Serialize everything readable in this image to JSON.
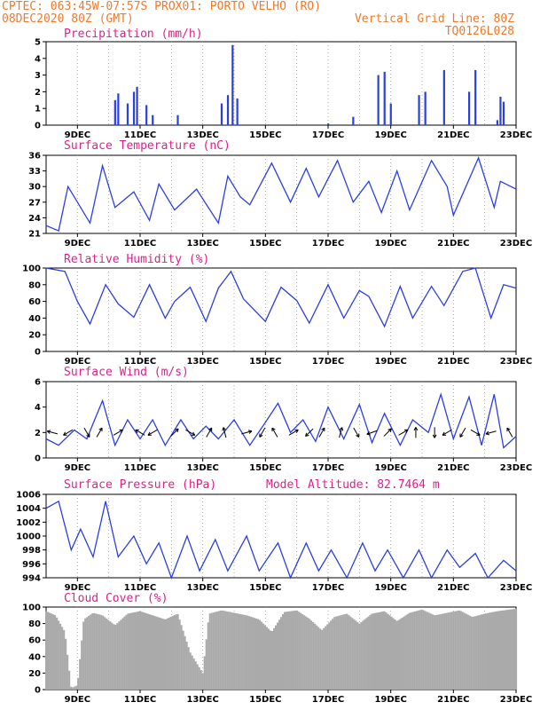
{
  "header": {
    "line1_left": "CPTEC:   063:45W-07:57S   PROX01: PORTO VELHO (RO)",
    "line2_left": "08DEC2020 80Z (GMT)",
    "line2_right": "Vertical Grid Line: 80Z",
    "line3_right": "TQ0126L028"
  },
  "colors": {
    "header": "#f07a2b",
    "title": "#e0208c",
    "series": "#2a3fe0",
    "cloud": "#aaaaaa",
    "grid": "#9a9a9a"
  },
  "x_labels": [
    "9DEC",
    "11DEC",
    "13DEC",
    "15DEC",
    "17DEC",
    "19DEC",
    "21DEC",
    "23DEC"
  ],
  "chart_data": [
    {
      "type": "bar",
      "title": "Precipitation (mm/h)",
      "x_range": [
        "08DEC2020 08Z",
        "23DEC2020 08Z"
      ],
      "ylim": [
        0,
        5
      ],
      "yticks": [
        0,
        1,
        2,
        3,
        4,
        5
      ],
      "series": [
        {
          "values": [
            [
              2.2,
              1.5
            ],
            [
              2.3,
              1.9
            ],
            [
              2.6,
              1.3
            ],
            [
              2.8,
              2.0
            ],
            [
              2.9,
              2.3
            ],
            [
              3.2,
              1.2
            ],
            [
              3.4,
              0.6
            ],
            [
              4.2,
              0.6
            ],
            [
              5.6,
              1.3
            ],
            [
              5.8,
              1.8
            ],
            [
              5.95,
              4.8
            ],
            [
              6.1,
              1.6
            ],
            [
              9.0,
              0.1
            ],
            [
              9.8,
              0.5
            ],
            [
              10.6,
              3.0
            ],
            [
              10.8,
              3.2
            ],
            [
              11.0,
              1.3
            ],
            [
              11.9,
              1.8
            ],
            [
              12.1,
              2.0
            ],
            [
              12.7,
              3.3
            ],
            [
              13.5,
              2.0
            ],
            [
              13.7,
              3.3
            ],
            [
              14.4,
              0.3
            ],
            [
              14.5,
              1.7
            ],
            [
              14.6,
              1.4
            ]
          ]
        }
      ]
    },
    {
      "type": "line",
      "title": "Surface Temperature (nC)",
      "ylim": [
        21,
        36
      ],
      "yticks": [
        21,
        24,
        27,
        30,
        33,
        36
      ],
      "series": [
        {
          "values": [
            [
              0,
              22.5
            ],
            [
              0.4,
              21.5
            ],
            [
              0.7,
              30
            ],
            [
              0.9,
              28
            ],
            [
              1.4,
              23
            ],
            [
              1.8,
              34
            ],
            [
              2.2,
              26
            ],
            [
              2.8,
              29
            ],
            [
              3.3,
              23.5
            ],
            [
              3.6,
              30.5
            ],
            [
              4.1,
              25.5
            ],
            [
              4.8,
              29.5
            ],
            [
              5.5,
              23
            ],
            [
              5.8,
              32
            ],
            [
              6.2,
              28
            ],
            [
              6.5,
              26.5
            ],
            [
              7.2,
              34.5
            ],
            [
              7.8,
              27
            ],
            [
              8.3,
              33.5
            ],
            [
              8.7,
              28
            ],
            [
              9.3,
              35
            ],
            [
              9.8,
              27
            ],
            [
              10.3,
              31
            ],
            [
              10.7,
              25
            ],
            [
              11.2,
              33
            ],
            [
              11.6,
              25.5
            ],
            [
              12.3,
              35
            ],
            [
              12.8,
              30
            ],
            [
              13.0,
              24.5
            ],
            [
              13.8,
              35.5
            ],
            [
              14.3,
              26
            ],
            [
              14.5,
              31
            ],
            [
              15.0,
              29.5
            ]
          ]
        }
      ]
    },
    {
      "type": "line",
      "title": "Relative Humidity (%)",
      "ylim": [
        0,
        100
      ],
      "yticks": [
        0,
        20,
        40,
        60,
        80,
        100
      ],
      "series": [
        {
          "values": [
            [
              0,
              100
            ],
            [
              0.6,
              96
            ],
            [
              1.0,
              60
            ],
            [
              1.4,
              33
            ],
            [
              1.9,
              80
            ],
            [
              2.3,
              57
            ],
            [
              2.8,
              41
            ],
            [
              3.3,
              80
            ],
            [
              3.8,
              40
            ],
            [
              4.1,
              60
            ],
            [
              4.6,
              77
            ],
            [
              5.1,
              36
            ],
            [
              5.5,
              76
            ],
            [
              5.9,
              96
            ],
            [
              6.3,
              63
            ],
            [
              7.0,
              36
            ],
            [
              7.5,
              77
            ],
            [
              8.0,
              61
            ],
            [
              8.4,
              34
            ],
            [
              9.0,
              80
            ],
            [
              9.5,
              40
            ],
            [
              10.0,
              73
            ],
            [
              10.3,
              66
            ],
            [
              10.8,
              30
            ],
            [
              11.3,
              78
            ],
            [
              11.7,
              40
            ],
            [
              12.3,
              78
            ],
            [
              12.7,
              55
            ],
            [
              13.3,
              96
            ],
            [
              13.7,
              100
            ],
            [
              14.2,
              40
            ],
            [
              14.6,
              80
            ],
            [
              15.0,
              76
            ]
          ]
        }
      ]
    },
    {
      "type": "line",
      "title": "Surface Wind (m/s)",
      "ylim": [
        0,
        6
      ],
      "yticks": [
        0,
        2,
        4,
        6
      ],
      "series": [
        {
          "values": [
            [
              0,
              1.5
            ],
            [
              0.4,
              1.0
            ],
            [
              0.9,
              2.2
            ],
            [
              1.3,
              1.5
            ],
            [
              1.8,
              4.5
            ],
            [
              2.2,
              1.0
            ],
            [
              2.6,
              3.0
            ],
            [
              3.0,
              1.5
            ],
            [
              3.4,
              3.0
            ],
            [
              3.8,
              1.0
            ],
            [
              4.3,
              3.0
            ],
            [
              4.7,
              1.5
            ],
            [
              5.1,
              2.5
            ],
            [
              5.5,
              1.5
            ],
            [
              6.0,
              3.0
            ],
            [
              6.5,
              1.0
            ],
            [
              7.0,
              2.8
            ],
            [
              7.4,
              4.3
            ],
            [
              7.8,
              2.0
            ],
            [
              8.2,
              3.0
            ],
            [
              8.6,
              1.3
            ],
            [
              9.0,
              4.0
            ],
            [
              9.5,
              1.5
            ],
            [
              10.0,
              4.2
            ],
            [
              10.4,
              1.2
            ],
            [
              10.8,
              3.5
            ],
            [
              11.3,
              1.0
            ],
            [
              11.7,
              3.0
            ],
            [
              12.2,
              2.0
            ],
            [
              12.6,
              5.0
            ],
            [
              13.0,
              1.5
            ],
            [
              13.5,
              4.8
            ],
            [
              13.9,
              1.0
            ],
            [
              14.3,
              5.0
            ],
            [
              14.6,
              0.8
            ],
            [
              15.0,
              1.7
            ]
          ]
        }
      ],
      "wind_vectors": [
        [
          0.2,
          165
        ],
        [
          0.7,
          210
        ],
        [
          1.3,
          300
        ],
        [
          1.7,
          60
        ],
        [
          2.3,
          30
        ],
        [
          3.0,
          150
        ],
        [
          3.4,
          210
        ],
        [
          4.1,
          45
        ],
        [
          4.6,
          330
        ],
        [
          5.2,
          60
        ],
        [
          5.7,
          105
        ],
        [
          6.4,
          15
        ],
        [
          6.9,
          240
        ],
        [
          7.3,
          120
        ],
        [
          7.9,
          30
        ],
        [
          8.4,
          225
        ],
        [
          8.8,
          60
        ],
        [
          9.4,
          75
        ],
        [
          9.9,
          300
        ],
        [
          10.4,
          200
        ],
        [
          10.9,
          45
        ],
        [
          11.4,
          30
        ],
        [
          11.8,
          90
        ],
        [
          12.4,
          270
        ],
        [
          12.8,
          210
        ],
        [
          13.3,
          240
        ],
        [
          13.7,
          330
        ],
        [
          14.2,
          195
        ],
        [
          14.8,
          120
        ]
      ]
    },
    {
      "type": "line",
      "title": "Surface Pressure (hPa)",
      "subtitle": "Model Altitude: 82.7464 m",
      "ylim": [
        994,
        1006
      ],
      "yticks": [
        994,
        996,
        998,
        1000,
        1002,
        1004,
        1006
      ],
      "series": [
        {
          "values": [
            [
              0,
              1004
            ],
            [
              0.4,
              1005
            ],
            [
              0.8,
              998
            ],
            [
              1.1,
              1001
            ],
            [
              1.5,
              997
            ],
            [
              1.9,
              1005
            ],
            [
              2.3,
              997
            ],
            [
              2.8,
              1000
            ],
            [
              3.2,
              996
            ],
            [
              3.6,
              999
            ],
            [
              4.0,
              994
            ],
            [
              4.5,
              1000
            ],
            [
              4.9,
              995
            ],
            [
              5.4,
              999.5
            ],
            [
              5.8,
              995
            ],
            [
              6.4,
              1000
            ],
            [
              6.8,
              995
            ],
            [
              7.4,
              999
            ],
            [
              7.8,
              994
            ],
            [
              8.3,
              999
            ],
            [
              8.7,
              995
            ],
            [
              9.1,
              998
            ],
            [
              9.6,
              994
            ],
            [
              10.1,
              999
            ],
            [
              10.5,
              995
            ],
            [
              10.9,
              998
            ],
            [
              11.4,
              994
            ],
            [
              11.9,
              998
            ],
            [
              12.3,
              994
            ],
            [
              12.8,
              998
            ],
            [
              13.2,
              995.5
            ],
            [
              13.7,
              997.5
            ],
            [
              14.1,
              994
            ],
            [
              14.6,
              996.5
            ],
            [
              15.0,
              995
            ]
          ]
        }
      ]
    },
    {
      "type": "area",
      "title": "Cloud Cover (%)",
      "ylim": [
        0,
        100
      ],
      "yticks": [
        0,
        20,
        40,
        60,
        80,
        100
      ],
      "series": [
        {
          "values": [
            [
              0,
              95
            ],
            [
              0.3,
              90
            ],
            [
              0.6,
              70
            ],
            [
              0.8,
              2
            ],
            [
              1.0,
              5
            ],
            [
              1.2,
              85
            ],
            [
              1.5,
              93
            ],
            [
              1.8,
              90
            ],
            [
              2.2,
              78
            ],
            [
              2.6,
              92
            ],
            [
              3.0,
              95
            ],
            [
              3.4,
              90
            ],
            [
              3.8,
              85
            ],
            [
              4.2,
              92
            ],
            [
              4.6,
              45
            ],
            [
              5.0,
              20
            ],
            [
              5.2,
              92
            ],
            [
              5.6,
              96
            ],
            [
              6.0,
              93
            ],
            [
              6.4,
              90
            ],
            [
              6.8,
              85
            ],
            [
              7.2,
              70
            ],
            [
              7.6,
              94
            ],
            [
              8.0,
              96
            ],
            [
              8.4,
              86
            ],
            [
              8.8,
              72
            ],
            [
              9.2,
              88
            ],
            [
              9.6,
              92
            ],
            [
              10.0,
              80
            ],
            [
              10.4,
              92
            ],
            [
              10.8,
              95
            ],
            [
              11.2,
              83
            ],
            [
              11.6,
              93
            ],
            [
              12.0,
              97
            ],
            [
              12.4,
              90
            ],
            [
              12.8,
              93
            ],
            [
              13.2,
              96
            ],
            [
              13.6,
              88
            ],
            [
              14.0,
              92
            ],
            [
              14.4,
              95
            ],
            [
              15.0,
              98
            ]
          ]
        }
      ]
    }
  ]
}
